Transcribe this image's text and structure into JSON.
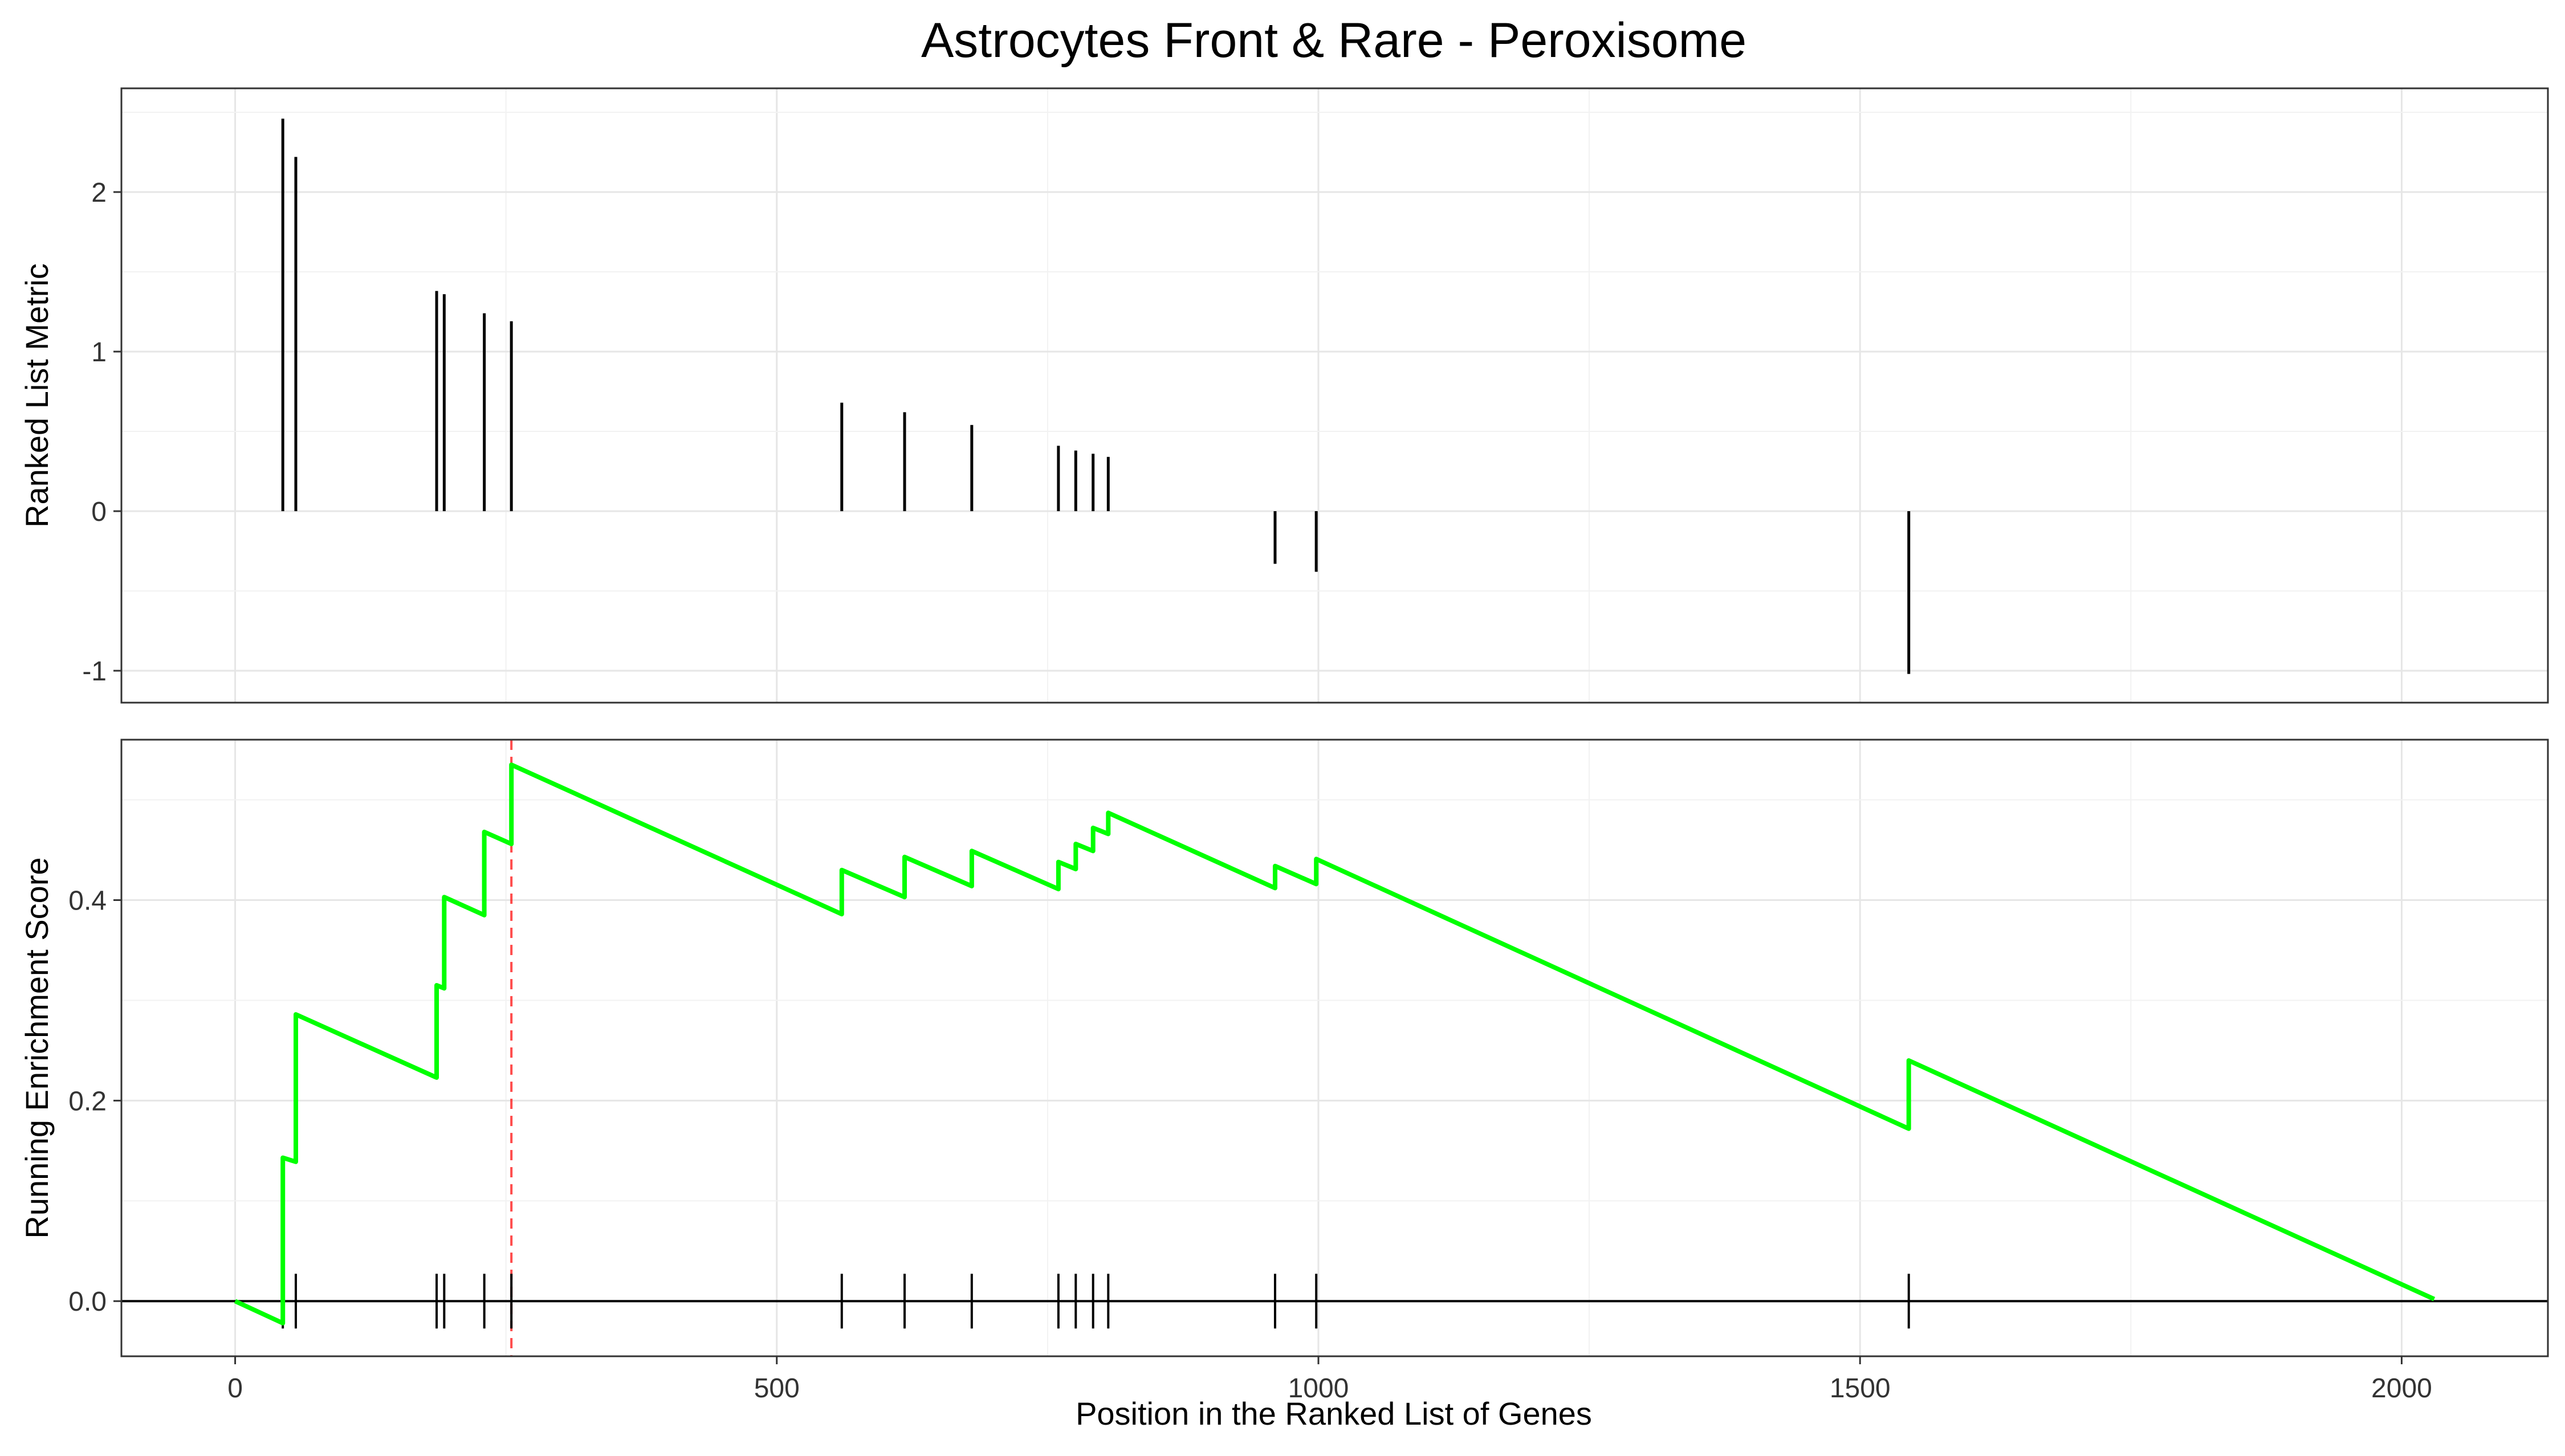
{
  "chart_data": {
    "title": "Astrocytes Front & Rare - Peroxisome",
    "type": "line",
    "xlabel": "Position in the Ranked List of Genes",
    "x_ticks": [
      0,
      500,
      1000,
      1500,
      2000
    ],
    "xlim": [
      -105,
      2135
    ],
    "peak_position": 255,
    "colors": {
      "running_score": "#00ff00",
      "peak_line": "#ff0000",
      "bars": "#000000"
    },
    "grid": true,
    "panels": [
      {
        "name": "ranked-list-metric",
        "ylabel": "Ranked List Metric",
        "y_ticks": [
          -1,
          0,
          1,
          2
        ],
        "ylim": [
          -1.2,
          2.65
        ],
        "bars": [
          {
            "x": 44,
            "y": 2.46
          },
          {
            "x": 56,
            "y": 2.22
          },
          {
            "x": 186,
            "y": 1.38
          },
          {
            "x": 193,
            "y": 1.36
          },
          {
            "x": 230,
            "y": 1.24
          },
          {
            "x": 255,
            "y": 1.19
          },
          {
            "x": 560,
            "y": 0.68
          },
          {
            "x": 618,
            "y": 0.62
          },
          {
            "x": 680,
            "y": 0.54
          },
          {
            "x": 760,
            "y": 0.41
          },
          {
            "x": 776,
            "y": 0.38
          },
          {
            "x": 792,
            "y": 0.36
          },
          {
            "x": 806,
            "y": 0.34
          },
          {
            "x": 960,
            "y": -0.33
          },
          {
            "x": 998,
            "y": -0.38
          },
          {
            "x": 1545,
            "y": -1.02
          }
        ]
      },
      {
        "name": "running-enrichment-score",
        "ylabel": "Running Enrichment Score",
        "y_ticks": [
          0.0,
          0.2,
          0.4
        ],
        "y_tick_labels": [
          "0.0",
          "0.2",
          "0.4"
        ],
        "ylim": [
          -0.055,
          0.56
        ],
        "hit_positions": [
          44,
          56,
          186,
          193,
          230,
          255,
          560,
          618,
          680,
          760,
          776,
          792,
          806,
          960,
          998,
          1545
        ],
        "line": [
          {
            "x": 0,
            "y": 0.0
          },
          {
            "x": 44,
            "y": -0.022
          },
          {
            "x": 44,
            "y": 0.143
          },
          {
            "x": 56,
            "y": 0.139
          },
          {
            "x": 56,
            "y": 0.286
          },
          {
            "x": 186,
            "y": 0.223
          },
          {
            "x": 186,
            "y": 0.315
          },
          {
            "x": 193,
            "y": 0.312
          },
          {
            "x": 193,
            "y": 0.403
          },
          {
            "x": 230,
            "y": 0.385
          },
          {
            "x": 230,
            "y": 0.468
          },
          {
            "x": 255,
            "y": 0.456
          },
          {
            "x": 255,
            "y": 0.535
          },
          {
            "x": 560,
            "y": 0.386
          },
          {
            "x": 560,
            "y": 0.43
          },
          {
            "x": 618,
            "y": 0.403
          },
          {
            "x": 618,
            "y": 0.443
          },
          {
            "x": 680,
            "y": 0.414
          },
          {
            "x": 680,
            "y": 0.449
          },
          {
            "x": 760,
            "y": 0.411
          },
          {
            "x": 760,
            "y": 0.438
          },
          {
            "x": 776,
            "y": 0.431
          },
          {
            "x": 776,
            "y": 0.456
          },
          {
            "x": 792,
            "y": 0.449
          },
          {
            "x": 792,
            "y": 0.472
          },
          {
            "x": 806,
            "y": 0.466
          },
          {
            "x": 806,
            "y": 0.487
          },
          {
            "x": 960,
            "y": 0.412
          },
          {
            "x": 960,
            "y": 0.434
          },
          {
            "x": 998,
            "y": 0.416
          },
          {
            "x": 998,
            "y": 0.441
          },
          {
            "x": 1545,
            "y": 0.172
          },
          {
            "x": 1545,
            "y": 0.24
          },
          {
            "x": 2030,
            "y": 0.002
          }
        ]
      }
    ]
  }
}
